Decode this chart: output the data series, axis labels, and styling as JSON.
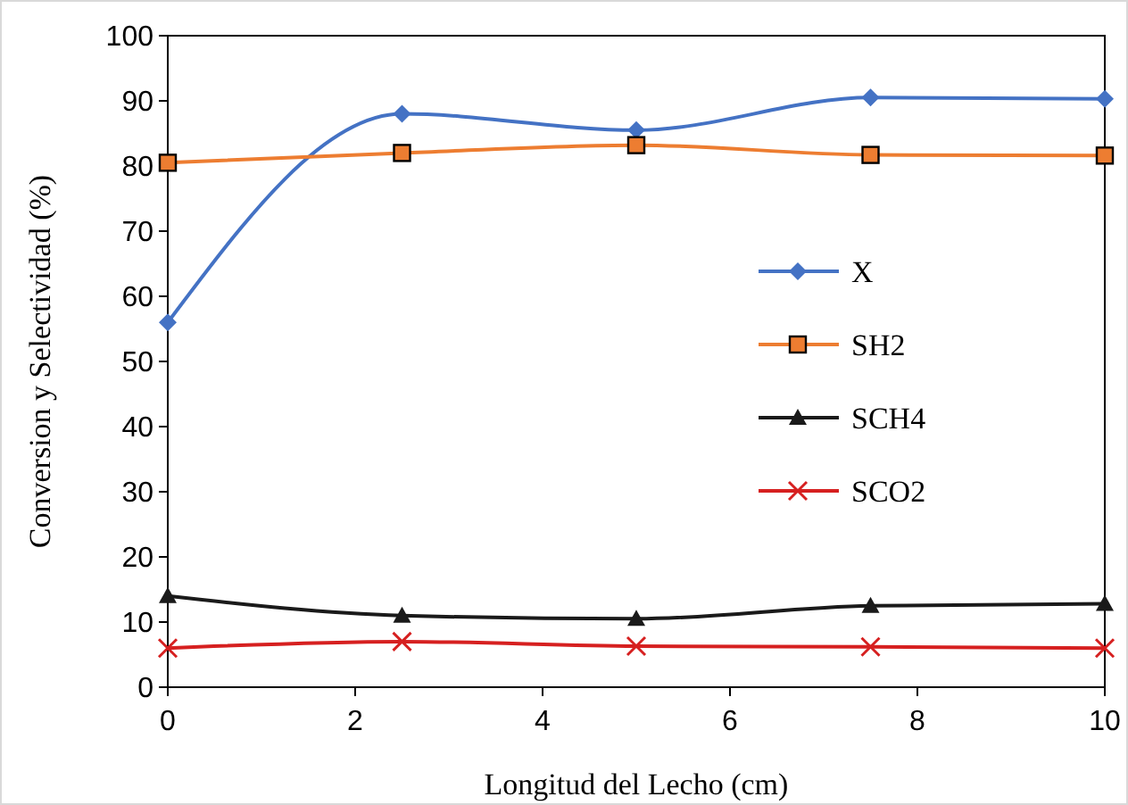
{
  "chart_data": {
    "type": "line",
    "xlabel": "Longitud del Lecho (cm)",
    "ylabel": "Conversion y Selectividad (%)",
    "x": [
      0,
      2.5,
      5,
      7.5,
      10
    ],
    "series": [
      {
        "name": "X",
        "color": "#4472c4",
        "marker": "diamond",
        "values": [
          56,
          88,
          85.5,
          90.5,
          90.3
        ]
      },
      {
        "name": "SH2",
        "color": "#ed7d31",
        "marker": "square",
        "values": [
          80.5,
          82,
          83.2,
          81.7,
          81.6
        ]
      },
      {
        "name": "SCH4",
        "color": "#1a1a1a",
        "marker": "triangle",
        "values": [
          14,
          11,
          10.5,
          12.5,
          12.8
        ]
      },
      {
        "name": "SCO2",
        "color": "#d62020",
        "marker": "cross",
        "values": [
          6,
          7,
          6.3,
          6.2,
          6
        ]
      }
    ],
    "xlim": [
      0,
      10
    ],
    "xticks": [
      0,
      2,
      4,
      6,
      8,
      10
    ],
    "ylim": [
      0,
      100
    ],
    "yticks": [
      0,
      10,
      20,
      30,
      40,
      50,
      60,
      70,
      80,
      90,
      100
    ],
    "legend": "right",
    "grid": false
  }
}
